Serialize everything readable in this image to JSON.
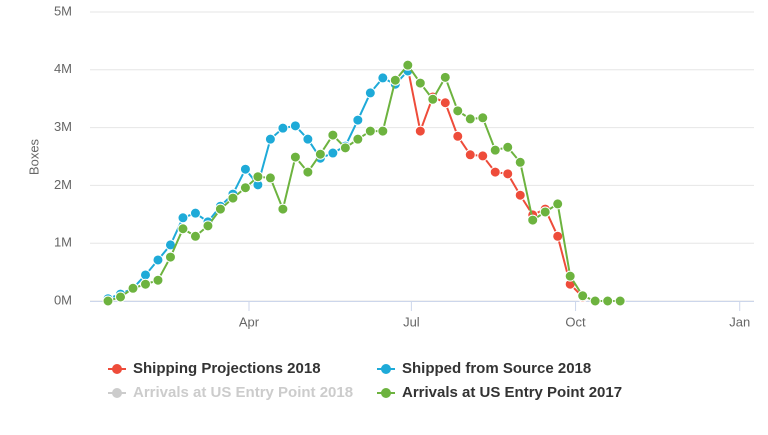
{
  "chart_data": {
    "type": "line",
    "y_label": "Boxes",
    "xlim": [
      0,
      374
    ],
    "xticks": [
      {
        "value": 91,
        "label": "Apr"
      },
      {
        "value": 182,
        "label": "Jul"
      },
      {
        "value": 274,
        "label": "Oct"
      },
      {
        "value": 366,
        "label": "Jan"
      }
    ],
    "ylim": [
      0,
      5000000
    ],
    "yticks": [
      {
        "value": 0,
        "label": "0M"
      },
      {
        "value": 1000000,
        "label": "1M"
      },
      {
        "value": 2000000,
        "label": "2M"
      },
      {
        "value": 3000000,
        "label": "3M"
      },
      {
        "value": 4000000,
        "label": "4M"
      },
      {
        "value": 5000000,
        "label": "5M"
      }
    ],
    "grid": true,
    "legend": "bottom",
    "series": [
      {
        "name": "Shipping Projections 2018",
        "color": "#ee4c3a",
        "x": [
          180,
          187,
          194,
          201,
          208,
          215,
          222,
          229,
          236,
          243,
          250,
          257,
          264,
          271,
          278
        ],
        "values": [
          4030000,
          2940000,
          3530000,
          3430000,
          2850000,
          2530000,
          2510000,
          2230000,
          2200000,
          1830000,
          1490000,
          1590000,
          1120000,
          290000,
          70000
        ]
      },
      {
        "name": "Shipped from Source 2018",
        "color": "#1eaad8",
        "x": [
          12,
          19,
          26,
          33,
          40,
          47,
          54,
          61,
          68,
          75,
          82,
          89,
          96,
          103,
          110,
          117,
          124,
          131,
          138,
          145,
          152,
          159,
          166,
          173,
          180
        ],
        "values": [
          40000,
          120000,
          220000,
          450000,
          710000,
          970000,
          1440000,
          1520000,
          1370000,
          1640000,
          1850000,
          2280000,
          2010000,
          2800000,
          2990000,
          3030000,
          2800000,
          2470000,
          2560000,
          2680000,
          3130000,
          3600000,
          3860000,
          3750000,
          3980000
        ]
      },
      {
        "name": "Arrivals at US Entry Point 2018",
        "color": "#cccccc",
        "visible": false
      },
      {
        "name": "Arrivals at US Entry Point 2017",
        "color": "#6db33f",
        "x": [
          12,
          19,
          26,
          33,
          40,
          47,
          54,
          61,
          68,
          75,
          82,
          89,
          96,
          103,
          110,
          117,
          124,
          131,
          138,
          145,
          152,
          159,
          166,
          173,
          180,
          187,
          194,
          201,
          208,
          215,
          222,
          229,
          236,
          243,
          250,
          257,
          264,
          271,
          278,
          285,
          292,
          299
        ],
        "values": [
          0,
          70000,
          220000,
          290000,
          360000,
          760000,
          1250000,
          1120000,
          1300000,
          1590000,
          1780000,
          1960000,
          2150000,
          2130000,
          1590000,
          2490000,
          2230000,
          2540000,
          2870000,
          2650000,
          2800000,
          2940000,
          2940000,
          3820000,
          4080000,
          3770000,
          3490000,
          3870000,
          3290000,
          3150000,
          3170000,
          2610000,
          2660000,
          2400000,
          1400000,
          1540000,
          1680000,
          430000,
          90000,
          0,
          0,
          0
        ]
      }
    ]
  }
}
